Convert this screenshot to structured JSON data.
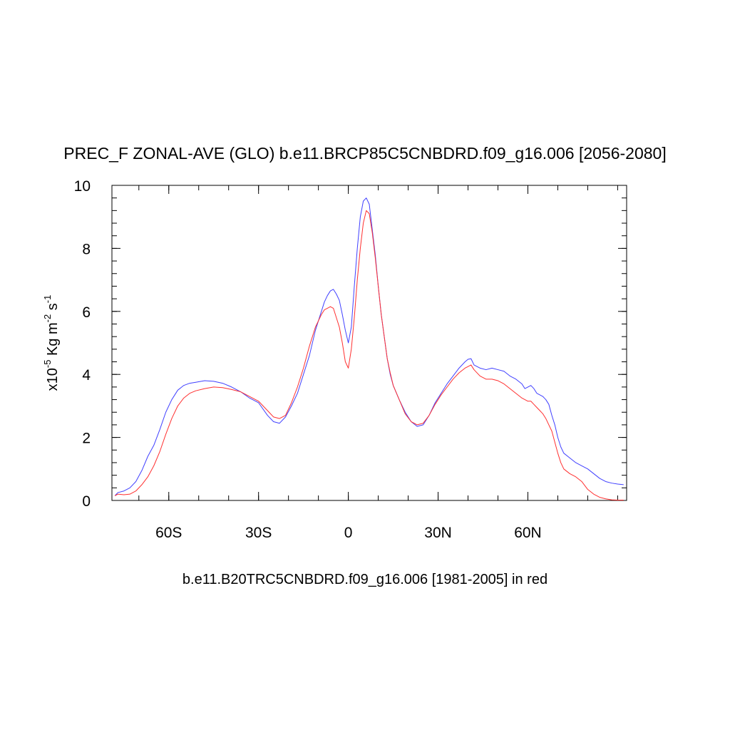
{
  "chart_data": {
    "type": "line",
    "title": "PREC_F ZONAL-AVE (GLO) b.e11.BRCP85C5CNBDRD.f09_g16.006 [2056-2080]",
    "xlabel": "b.e11.B20TRC5CNBDRD.f09_g16.006 [1981-2005] in red",
    "ylabel": {
      "prefix": "x10",
      "exponent": "-5",
      "unit_a": " Kg m",
      "unit_a_exp": "-2",
      "unit_b": " s",
      "unit_b_exp": "-1"
    },
    "xlim": [
      -79,
      93
    ],
    "ylim": [
      0,
      10
    ],
    "yticks": [
      {
        "value": 0,
        "label": "0"
      },
      {
        "value": 2,
        "label": "2"
      },
      {
        "value": 4,
        "label": "4"
      },
      {
        "value": 6,
        "label": "6"
      },
      {
        "value": 8,
        "label": "8"
      },
      {
        "value": 10,
        "label": "10"
      }
    ],
    "xticks": [
      {
        "value": -60,
        "label": "60S"
      },
      {
        "value": -30,
        "label": "30S"
      },
      {
        "value": 0,
        "label": "0"
      },
      {
        "value": 30,
        "label": "30N"
      },
      {
        "value": 60,
        "label": "60N"
      }
    ],
    "grid": false,
    "series": [
      {
        "color": "#4040ff",
        "x": [
          -78,
          -77,
          -75,
          -73,
          -71,
          -69,
          -67,
          -65,
          -63,
          -61,
          -59,
          -57,
          -55,
          -53,
          -51,
          -48,
          -45,
          -42,
          -39,
          -36,
          -33,
          -30,
          -27,
          -25,
          -23,
          -21,
          -19,
          -17,
          -15,
          -13,
          -11,
          -9,
          -8,
          -7,
          -6,
          -5,
          -4,
          -3,
          -2,
          -1,
          0,
          1,
          2,
          3,
          4,
          5,
          6,
          7,
          8,
          9,
          10,
          11,
          12,
          13,
          14,
          15,
          17,
          19,
          21,
          23,
          25,
          27,
          29,
          31,
          33,
          35,
          37,
          39,
          40,
          41,
          42,
          44,
          46,
          48,
          50,
          52,
          54,
          56,
          58,
          59,
          60,
          61,
          62,
          63,
          64,
          65,
          66,
          67,
          68,
          69,
          70,
          71,
          72,
          74,
          76,
          78,
          80,
          82,
          84,
          86,
          88,
          90,
          92
        ],
        "y": [
          0.15,
          0.25,
          0.3,
          0.4,
          0.6,
          0.95,
          1.4,
          1.75,
          2.25,
          2.8,
          3.2,
          3.5,
          3.65,
          3.72,
          3.75,
          3.8,
          3.78,
          3.72,
          3.6,
          3.45,
          3.25,
          3.1,
          2.7,
          2.5,
          2.45,
          2.65,
          3.0,
          3.4,
          4.0,
          4.6,
          5.4,
          6.0,
          6.3,
          6.5,
          6.65,
          6.7,
          6.55,
          6.35,
          5.9,
          5.4,
          5.0,
          5.5,
          6.8,
          8.0,
          9.0,
          9.5,
          9.6,
          9.4,
          8.6,
          7.8,
          6.8,
          5.9,
          5.2,
          4.5,
          4.0,
          3.65,
          3.2,
          2.8,
          2.5,
          2.35,
          2.4,
          2.7,
          3.1,
          3.4,
          3.7,
          3.95,
          4.2,
          4.4,
          4.48,
          4.5,
          4.3,
          4.2,
          4.15,
          4.2,
          4.15,
          4.1,
          3.95,
          3.85,
          3.7,
          3.55,
          3.6,
          3.65,
          3.55,
          3.4,
          3.35,
          3.3,
          3.2,
          3.05,
          2.7,
          2.4,
          2.0,
          1.7,
          1.5,
          1.35,
          1.2,
          1.1,
          1.0,
          0.85,
          0.7,
          0.6,
          0.55,
          0.52,
          0.5
        ]
      },
      {
        "color": "#ff3030",
        "x": [
          -78,
          -77,
          -75,
          -73,
          -71,
          -69,
          -67,
          -65,
          -63,
          -61,
          -59,
          -57,
          -55,
          -53,
          -51,
          -48,
          -45,
          -42,
          -39,
          -36,
          -33,
          -30,
          -27,
          -25,
          -23,
          -21,
          -19,
          -17,
          -15,
          -13,
          -11,
          -9,
          -8,
          -7,
          -6,
          -5,
          -4,
          -3,
          -2,
          -1,
          0,
          1,
          2,
          3,
          4,
          5,
          6,
          7,
          8,
          9,
          10,
          11,
          12,
          13,
          14,
          15,
          17,
          19,
          21,
          23,
          25,
          27,
          29,
          31,
          33,
          35,
          37,
          39,
          40,
          41,
          42,
          44,
          46,
          48,
          50,
          52,
          54,
          56,
          58,
          59,
          60,
          61,
          62,
          63,
          64,
          65,
          66,
          67,
          68,
          69,
          70,
          71,
          72,
          74,
          76,
          78,
          80,
          82,
          84,
          86,
          88,
          90,
          92
        ],
        "y": [
          0.15,
          0.2,
          0.18,
          0.2,
          0.3,
          0.5,
          0.75,
          1.1,
          1.55,
          2.1,
          2.6,
          3.0,
          3.25,
          3.4,
          3.48,
          3.55,
          3.6,
          3.58,
          3.52,
          3.45,
          3.3,
          3.15,
          2.85,
          2.65,
          2.6,
          2.7,
          3.1,
          3.6,
          4.2,
          4.9,
          5.5,
          5.9,
          6.05,
          6.1,
          6.15,
          6.1,
          5.8,
          5.5,
          5.0,
          4.4,
          4.2,
          4.8,
          5.8,
          7.0,
          8.0,
          8.8,
          9.2,
          9.1,
          8.5,
          7.7,
          6.8,
          5.9,
          5.2,
          4.5,
          4.05,
          3.65,
          3.2,
          2.75,
          2.5,
          2.4,
          2.45,
          2.7,
          3.05,
          3.35,
          3.6,
          3.85,
          4.05,
          4.2,
          4.25,
          4.3,
          4.15,
          3.95,
          3.85,
          3.85,
          3.8,
          3.7,
          3.55,
          3.4,
          3.25,
          3.2,
          3.15,
          3.15,
          3.05,
          2.95,
          2.85,
          2.75,
          2.6,
          2.4,
          2.2,
          1.85,
          1.5,
          1.2,
          1.0,
          0.85,
          0.75,
          0.6,
          0.35,
          0.2,
          0.1,
          0.05,
          0.02,
          0.01,
          0.01
        ]
      }
    ]
  }
}
